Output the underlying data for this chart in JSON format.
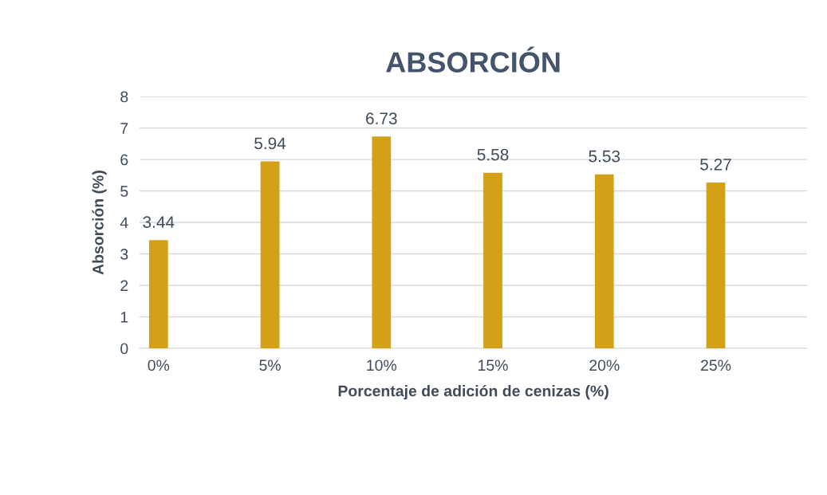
{
  "chart_data": {
    "type": "bar",
    "title": "ABSORCIÓN",
    "xlabel": "Porcentaje de adición de cenizas (%)",
    "ylabel": "Absorción (%)",
    "categories": [
      "0%",
      "5%",
      "10%",
      "15%",
      "20%",
      "25%"
    ],
    "values": [
      3.44,
      5.94,
      6.73,
      5.58,
      5.53,
      5.27
    ],
    "color": "#d4a017",
    "ylim": [
      0,
      8
    ],
    "yticks": [
      0,
      1,
      2,
      3,
      4,
      5,
      6,
      7,
      8
    ],
    "grid": "y",
    "data_labels": true
  }
}
